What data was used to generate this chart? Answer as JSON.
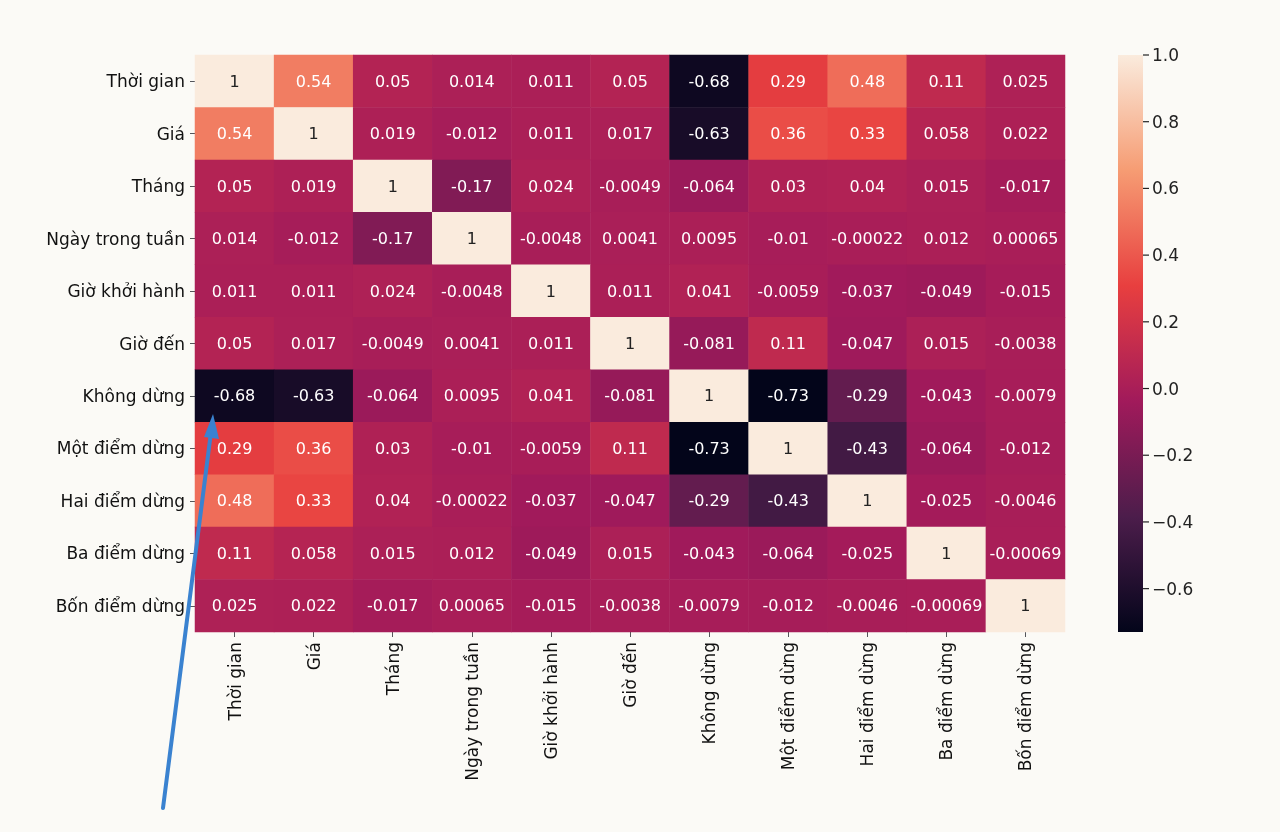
{
  "chart_data": {
    "type": "heatmap",
    "categories": [
      "Thời gian",
      "Giá",
      "Tháng",
      "Ngày trong tuần",
      "Giờ khởi hành",
      "Giờ đến",
      "Không dừng",
      "Một điểm dừng",
      "Hai điểm dừng",
      "Ba điểm dừng",
      "Bốn điểm dừng"
    ],
    "y_categories": [
      "Thời gian",
      "Giá",
      "Tháng",
      "Ngày trong tuần",
      "Giờ khởi hành",
      "Giờ đến",
      "Không dừng",
      "Một điểm dừng",
      "Hai điểm dừng",
      "Ba điểm dừng",
      "Bốn điểm dừng"
    ],
    "cells": [
      [
        1,
        0.54,
        0.05,
        0.014,
        0.011,
        0.05,
        -0.68,
        0.29,
        0.48,
        0.11,
        0.025
      ],
      [
        0.54,
        1,
        0.019,
        -0.012,
        0.011,
        0.017,
        -0.63,
        0.36,
        0.33,
        0.058,
        0.022
      ],
      [
        0.05,
        0.019,
        1,
        -0.17,
        0.024,
        -0.0049,
        -0.064,
        0.03,
        0.04,
        0.015,
        -0.017
      ],
      [
        0.014,
        -0.012,
        -0.17,
        1,
        -0.0048,
        0.0041,
        0.0095,
        -0.01,
        -0.00022,
        0.012,
        0.00065
      ],
      [
        0.011,
        0.011,
        0.024,
        -0.0048,
        1,
        0.011,
        0.041,
        -0.0059,
        -0.037,
        -0.049,
        -0.015
      ],
      [
        0.05,
        0.017,
        -0.0049,
        0.0041,
        0.011,
        1,
        -0.081,
        0.11,
        -0.047,
        0.015,
        -0.0038
      ],
      [
        -0.68,
        -0.63,
        -0.064,
        0.0095,
        0.041,
        -0.081,
        1,
        -0.73,
        -0.29,
        -0.043,
        -0.0079
      ],
      [
        0.29,
        0.36,
        0.03,
        -0.01,
        -0.0059,
        0.11,
        -0.73,
        1,
        -0.43,
        -0.064,
        -0.012
      ],
      [
        0.48,
        0.33,
        0.04,
        -0.00022,
        -0.037,
        -0.047,
        -0.29,
        -0.43,
        1,
        -0.025,
        -0.0046
      ],
      [
        0.11,
        0.058,
        0.015,
        0.012,
        -0.049,
        0.015,
        -0.043,
        -0.064,
        -0.025,
        1,
        -0.00069
      ],
      [
        0.025,
        0.022,
        -0.017,
        0.00065,
        -0.015,
        -0.0038,
        -0.0079,
        -0.012,
        -0.0046,
        -0.00069,
        1
      ]
    ],
    "data_labels": true,
    "clim": [
      -0.73,
      1
    ],
    "cticks": [
      {
        "value": -0.6,
        "label": "−0.6"
      },
      {
        "value": -0.4,
        "label": "−0.4"
      },
      {
        "value": -0.2,
        "label": "−0.2"
      },
      {
        "value": 0,
        "label": "0.0"
      },
      {
        "value": 0.2,
        "label": "0.2"
      },
      {
        "value": 0.4,
        "label": "0.4"
      },
      {
        "value": 0.6,
        "label": "0.6"
      },
      {
        "value": 0.8,
        "label": "0.8"
      },
      {
        "value": 1,
        "label": "1.0"
      }
    ]
  }
}
